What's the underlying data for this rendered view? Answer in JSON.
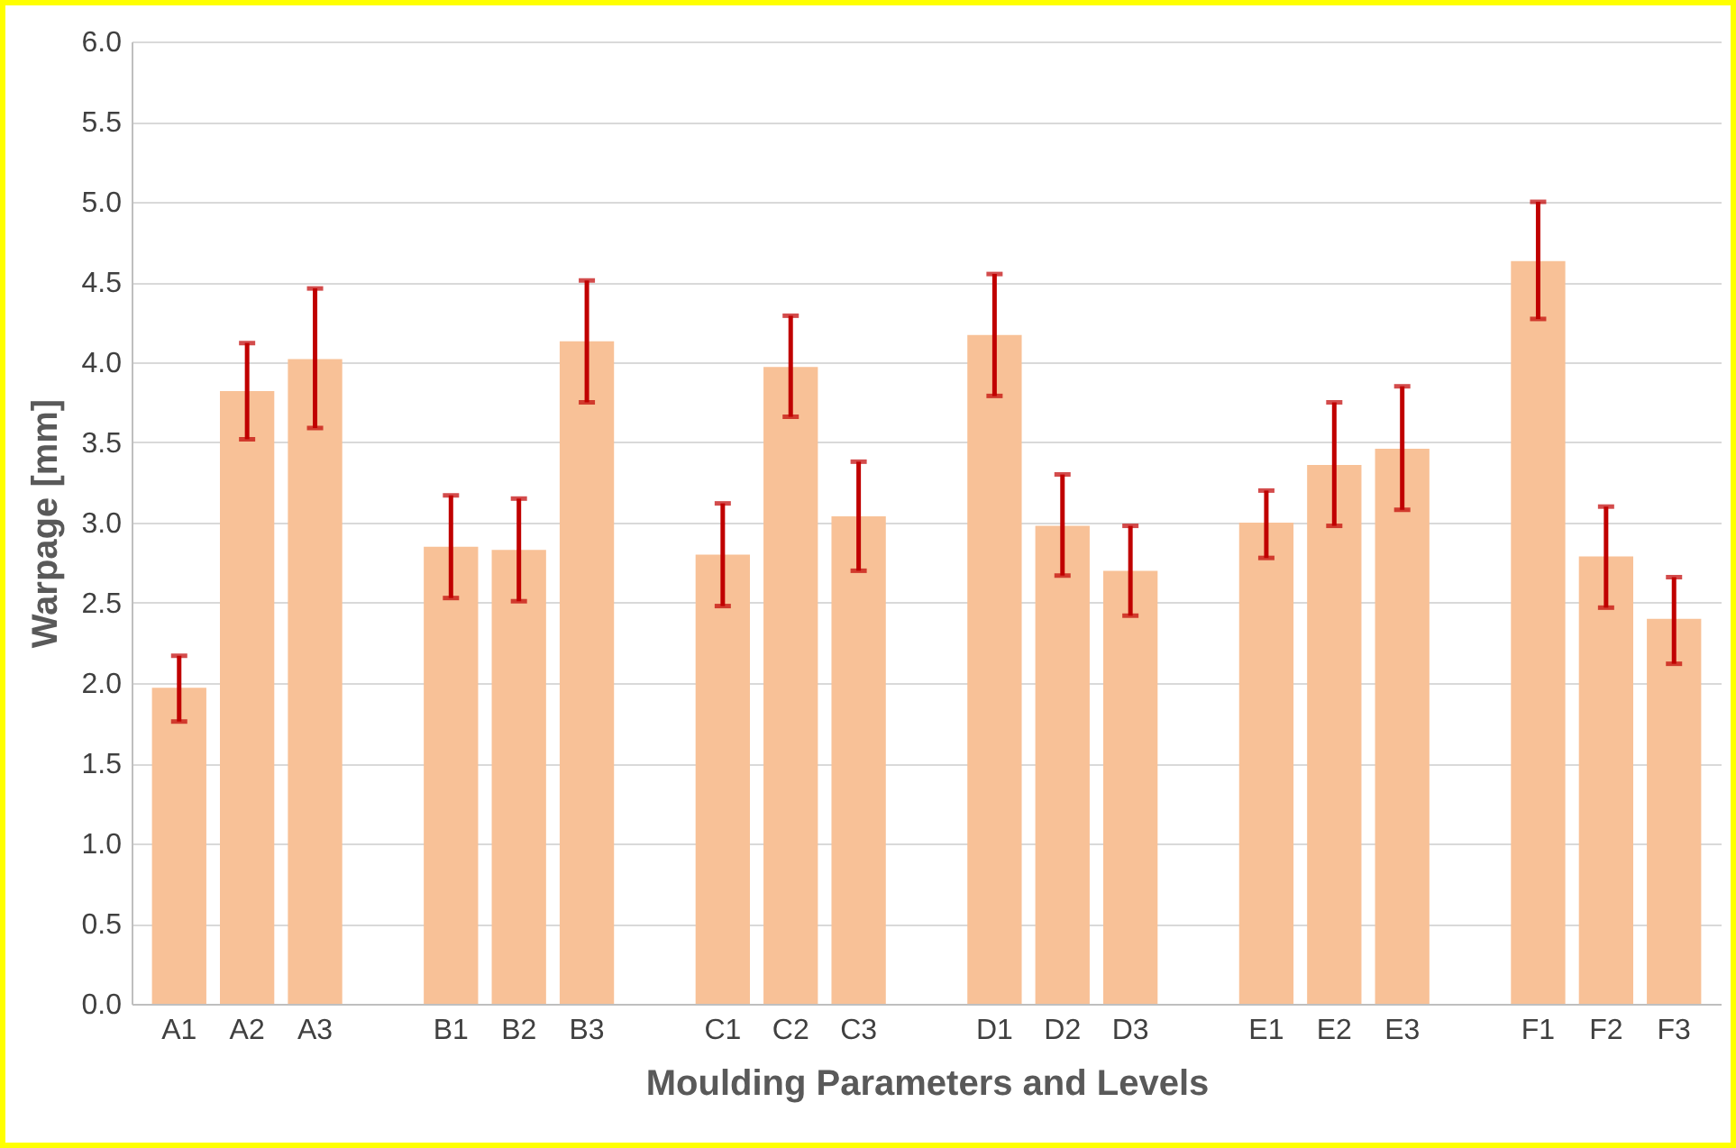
{
  "chart_data": {
    "type": "bar",
    "xlabel": "Moulding Parameters and Levels",
    "ylabel": "Warpage [mm]",
    "categories": [
      "A1",
      "A2",
      "A3",
      null,
      "B1",
      "B2",
      "B3",
      null,
      "C1",
      "C2",
      "C3",
      null,
      "D1",
      "D2",
      "D3",
      null,
      "E1",
      "E2",
      "E3",
      null,
      "F1",
      "F2",
      "F3"
    ],
    "series": [
      {
        "color": "#f8c197",
        "values": [
          1.97,
          3.82,
          4.02,
          null,
          2.85,
          2.83,
          4.13,
          null,
          2.8,
          3.97,
          3.04,
          null,
          4.17,
          2.98,
          2.7,
          null,
          3.0,
          3.36,
          3.46,
          null,
          4.63,
          2.79,
          2.4
        ],
        "errors": [
          [
            1.76,
            2.17
          ],
          [
            3.52,
            4.12
          ],
          [
            3.59,
            4.46
          ],
          null,
          [
            2.53,
            3.17
          ],
          [
            2.51,
            3.15
          ],
          [
            3.75,
            4.51
          ],
          null,
          [
            2.48,
            3.12
          ],
          [
            3.66,
            4.29
          ],
          [
            2.7,
            3.38
          ],
          null,
          [
            3.79,
            4.55
          ],
          [
            2.67,
            3.3
          ],
          [
            2.42,
            2.98
          ],
          null,
          [
            2.78,
            3.2
          ],
          [
            2.98,
            3.75
          ],
          [
            3.08,
            3.85
          ],
          null,
          [
            4.27,
            5.0
          ],
          [
            2.47,
            3.1
          ],
          [
            2.12,
            2.66
          ]
        ]
      }
    ],
    "ylim": [
      0,
      6
    ],
    "yticks": [
      {
        "value": 0,
        "label": "0.0"
      },
      0.5,
      {
        "value": 1,
        "label": "1.0"
      },
      1.5,
      {
        "value": 2,
        "label": "2.0"
      },
      2.5,
      {
        "value": 3,
        "label": "3.0"
      },
      3.5,
      {
        "value": 4,
        "label": "4.0"
      },
      4.5,
      {
        "value": 5,
        "label": "5.0"
      },
      5.5,
      {
        "value": 6,
        "label": "6.0"
      }
    ],
    "grid": "y"
  }
}
